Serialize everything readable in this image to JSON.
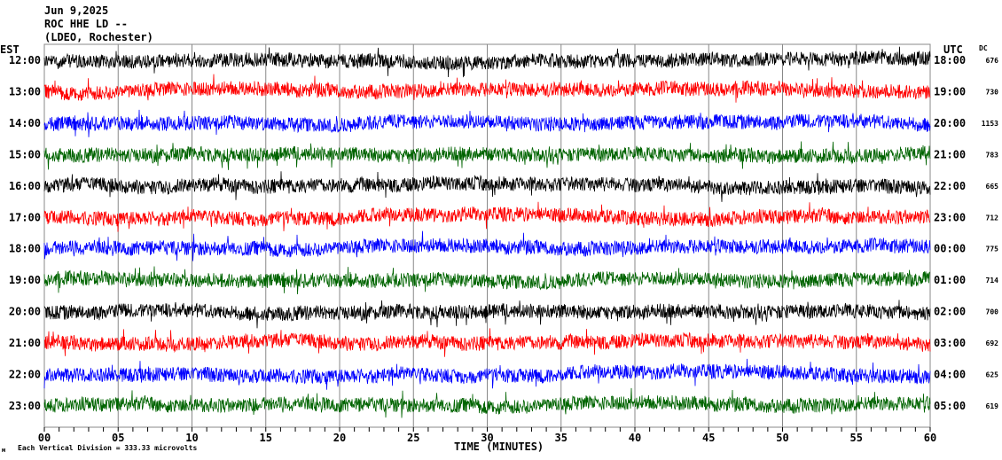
{
  "header": {
    "date": "Jun 9,2025",
    "station": "ROC HHE LD --",
    "network": "(LDEO, Rochester)",
    "left_zone": "EST",
    "right_zone": "UTC",
    "dc_label": "DC"
  },
  "footer": {
    "scale_note": "Each Vertical Division =  333.33 microvolts",
    "corner_mark": "м"
  },
  "chart_data": {
    "type": "line",
    "title": "ROC HHE LD --",
    "xlabel": "TIME (MINUTES)",
    "xlim": [
      0,
      60
    ],
    "x_ticks": [
      "00",
      "05",
      "10",
      "15",
      "20",
      "25",
      "30",
      "35",
      "40",
      "45",
      "50",
      "55",
      "60"
    ],
    "grid": true,
    "colors": [
      "#000000",
      "#ff0000",
      "#0000ff",
      "#006400"
    ],
    "rows": [
      {
        "est": "12:00",
        "utc": "18:00",
        "dc": "676"
      },
      {
        "est": "13:00",
        "utc": "19:00",
        "dc": "730"
      },
      {
        "est": "14:00",
        "utc": "20:00",
        "dc": "1153"
      },
      {
        "est": "15:00",
        "utc": "21:00",
        "dc": "783"
      },
      {
        "est": "16:00",
        "utc": "22:00",
        "dc": "665"
      },
      {
        "est": "17:00",
        "utc": "23:00",
        "dc": "712"
      },
      {
        "est": "18:00",
        "utc": "00:00",
        "dc": "775"
      },
      {
        "est": "19:00",
        "utc": "01:00",
        "dc": "714"
      },
      {
        "est": "20:00",
        "utc": "02:00",
        "dc": "700"
      },
      {
        "est": "21:00",
        "utc": "03:00",
        "dc": "692"
      },
      {
        "est": "22:00",
        "utc": "04:00",
        "dc": "625"
      },
      {
        "est": "23:00",
        "utc": "05:00",
        "dc": "619"
      }
    ]
  }
}
